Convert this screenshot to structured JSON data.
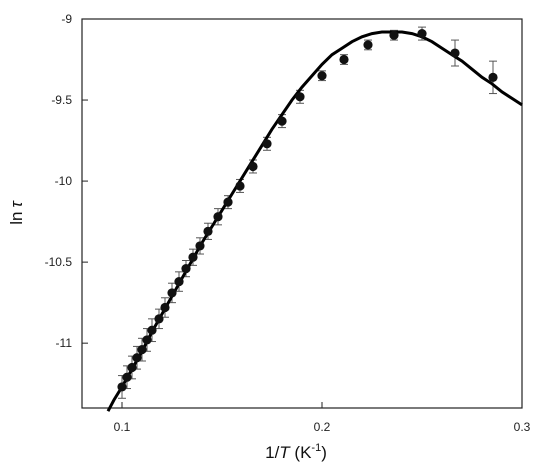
{
  "chart_data": {
    "type": "scatter",
    "title": "",
    "xlabel": {
      "prefix": "1/",
      "var": "T",
      "mid": "  (K",
      "sup": "-1",
      "suffix": ")"
    },
    "ylabel": {
      "text": "ln",
      "var": "τ"
    },
    "xlim": [
      0.08,
      0.3
    ],
    "ylim": [
      -11.4,
      -9.0
    ],
    "xticks": [
      {
        "value": 0.1,
        "label": "0.1"
      },
      {
        "value": 0.2,
        "label": "0.2"
      },
      {
        "value": 0.3,
        "label": "0.3"
      }
    ],
    "yticks": [
      {
        "value": -9.0,
        "label": "-9"
      },
      {
        "value": -9.5,
        "label": "-9.5"
      },
      {
        "value": -10.0,
        "label": "-10"
      },
      {
        "value": -10.5,
        "label": "-10.5"
      },
      {
        "value": -11.0,
        "label": "-11"
      }
    ],
    "grid": false,
    "legend": "none",
    "colors": {
      "points": "#111111",
      "fit_line": "#000000",
      "error_bars": "#555555",
      "axes": "#222222"
    },
    "series": [
      {
        "kind": "points_with_error_bars",
        "points": [
          {
            "x": 0.1,
            "y": -11.27,
            "err": 0.07
          },
          {
            "x": 0.1025,
            "y": -11.21,
            "err": 0.07
          },
          {
            "x": 0.105,
            "y": -11.15,
            "err": 0.07
          },
          {
            "x": 0.1075,
            "y": -11.09,
            "err": 0.07
          },
          {
            "x": 0.11,
            "y": -11.04,
            "err": 0.07
          },
          {
            "x": 0.1125,
            "y": -10.98,
            "err": 0.07
          },
          {
            "x": 0.115,
            "y": -10.92,
            "err": 0.07
          },
          {
            "x": 0.1185,
            "y": -10.85,
            "err": 0.06
          },
          {
            "x": 0.1215,
            "y": -10.78,
            "err": 0.06
          },
          {
            "x": 0.125,
            "y": -10.69,
            "err": 0.06
          },
          {
            "x": 0.1285,
            "y": -10.62,
            "err": 0.06
          },
          {
            "x": 0.132,
            "y": -10.54,
            "err": 0.05
          },
          {
            "x": 0.1355,
            "y": -10.47,
            "err": 0.05
          },
          {
            "x": 0.139,
            "y": -10.4,
            "err": 0.05
          },
          {
            "x": 0.143,
            "y": -10.31,
            "err": 0.05
          },
          {
            "x": 0.148,
            "y": -10.22,
            "err": 0.05
          },
          {
            "x": 0.153,
            "y": -10.13,
            "err": 0.04
          },
          {
            "x": 0.159,
            "y": -10.03,
            "err": 0.04
          },
          {
            "x": 0.1655,
            "y": -9.91,
            "err": 0.04
          },
          {
            "x": 0.1725,
            "y": -9.77,
            "err": 0.04
          },
          {
            "x": 0.18,
            "y": -9.63,
            "err": 0.04
          },
          {
            "x": 0.189,
            "y": -9.48,
            "err": 0.04
          },
          {
            "x": 0.2,
            "y": -9.35,
            "err": 0.03
          },
          {
            "x": 0.211,
            "y": -9.25,
            "err": 0.03
          },
          {
            "x": 0.223,
            "y": -9.16,
            "err": 0.03
          },
          {
            "x": 0.236,
            "y": -9.1,
            "err": 0.03
          },
          {
            "x": 0.25,
            "y": -9.09,
            "err": 0.04
          },
          {
            "x": 0.2665,
            "y": -9.21,
            "err": 0.08
          },
          {
            "x": 0.2855,
            "y": -9.36,
            "err": 0.1
          }
        ]
      },
      {
        "kind": "fit_line",
        "x": [
          0.093,
          0.096,
          0.1,
          0.105,
          0.11,
          0.115,
          0.12,
          0.125,
          0.13,
          0.135,
          0.14,
          0.145,
          0.15,
          0.155,
          0.16,
          0.165,
          0.17,
          0.175,
          0.18,
          0.185,
          0.19,
          0.195,
          0.2,
          0.205,
          0.21,
          0.215,
          0.22,
          0.225,
          0.23,
          0.235,
          0.24,
          0.245,
          0.25,
          0.255,
          0.26,
          0.265,
          0.27,
          0.275,
          0.28,
          0.285,
          0.29,
          0.295,
          0.3
        ],
        "y": [
          -11.42,
          -11.35,
          -11.27,
          -11.16,
          -11.05,
          -10.93,
          -10.82,
          -10.71,
          -10.6,
          -10.49,
          -10.38,
          -10.28,
          -10.18,
          -10.08,
          -9.98,
          -9.88,
          -9.78,
          -9.68,
          -9.59,
          -9.5,
          -9.42,
          -9.35,
          -9.28,
          -9.22,
          -9.18,
          -9.14,
          -9.11,
          -9.09,
          -9.08,
          -9.08,
          -9.08,
          -9.09,
          -9.11,
          -9.14,
          -9.18,
          -9.22,
          -9.26,
          -9.31,
          -9.36,
          -9.4,
          -9.45,
          -9.49,
          -9.53
        ]
      }
    ]
  }
}
